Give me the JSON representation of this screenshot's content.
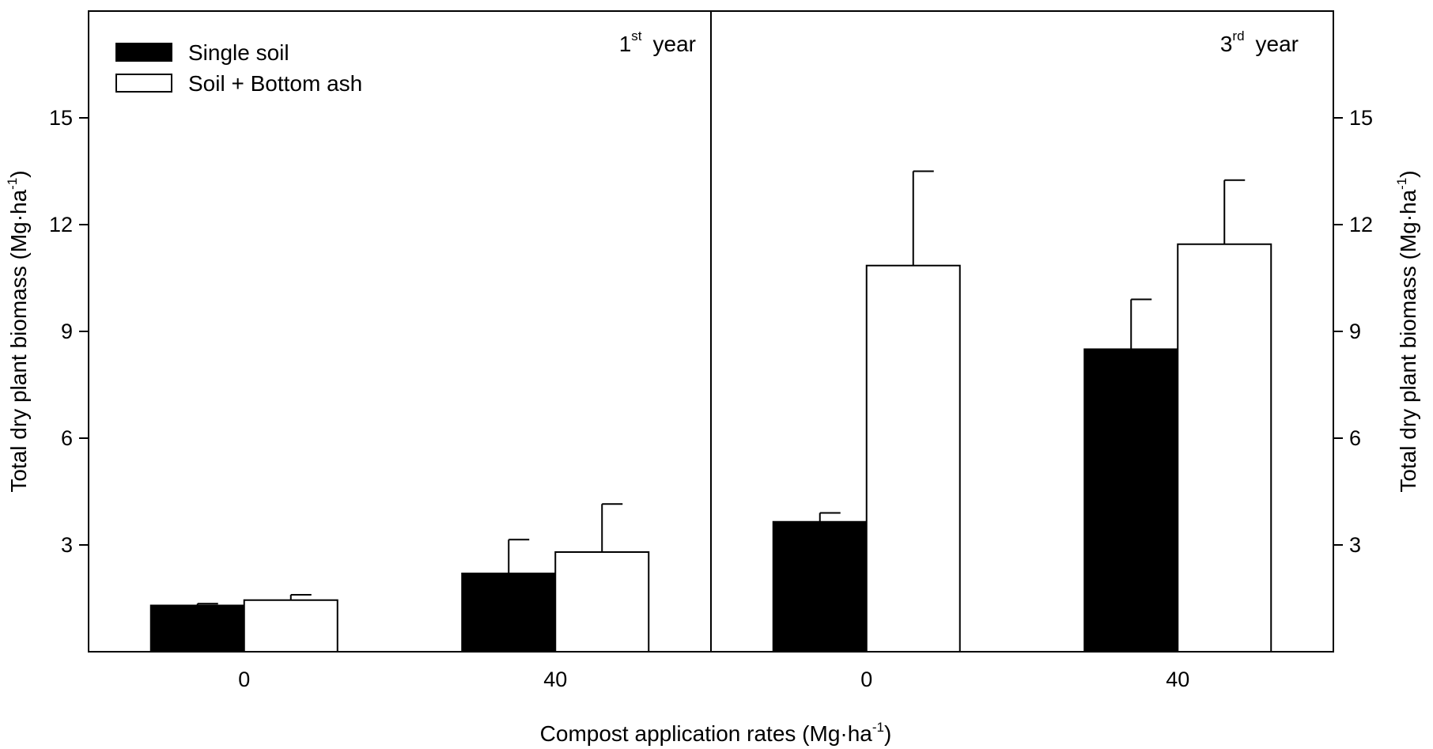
{
  "chart_data": [
    {
      "type": "bar",
      "panel_label": {
        "number": "1",
        "superscript": "st",
        "suffix": "year"
      },
      "categories": [
        "0",
        "40"
      ],
      "series": [
        {
          "name": "Single soil",
          "values": [
            1.3,
            2.2
          ],
          "errors": [
            0.05,
            0.95
          ]
        },
        {
          "name": "Soil + Bottom ash",
          "values": [
            1.45,
            2.8
          ],
          "errors": [
            0.15,
            1.35
          ]
        }
      ],
      "ylim": [
        0,
        18
      ],
      "yticks": [
        3,
        6,
        9,
        12,
        15
      ],
      "ylabel": {
        "main": "Total dry plant biomass (Mg·ha",
        "sup": "-1",
        "end": ")"
      },
      "legend": "top-left"
    },
    {
      "type": "bar",
      "panel_label": {
        "number": "3",
        "superscript": "rd",
        "suffix": "year"
      },
      "categories": [
        "0",
        "40"
      ],
      "series": [
        {
          "name": "Single soil",
          "values": [
            3.65,
            8.5
          ],
          "errors": [
            0.25,
            1.4
          ]
        },
        {
          "name": "Soil + Bottom ash",
          "values": [
            10.85,
            11.45
          ],
          "errors": [
            2.65,
            1.8
          ]
        }
      ],
      "ylim": [
        0,
        18
      ],
      "yticks": [
        3,
        6,
        9,
        12,
        15
      ],
      "ylabel": {
        "main": "Total dry plant biomass (Mg·ha",
        "sup": "-1",
        "end": ")"
      }
    }
  ],
  "xlabel": {
    "main": "Compost application rates (Mg·ha",
    "sup": "-1",
    "end": ")"
  },
  "colors": {
    "single_soil": "#000000",
    "soil_bottom_ash": "#ffffff",
    "stroke": "#000000"
  }
}
